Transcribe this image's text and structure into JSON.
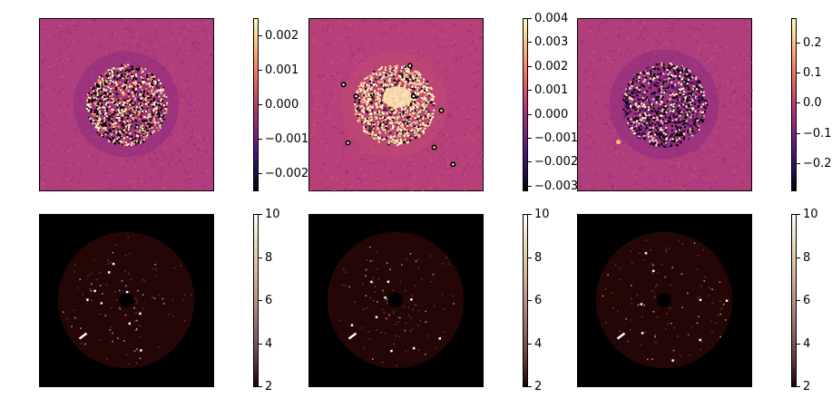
{
  "chart_data": [
    {
      "type": "heatmap",
      "row": "top",
      "col": 1,
      "colormap": "magma",
      "style": "residual",
      "colorbar": {
        "min": -0.0025,
        "max": 0.0025,
        "ticks": [
          0.002,
          0.001,
          0.0,
          -0.001,
          -0.002
        ],
        "tick_labels": [
          "0.002",
          "0.001",
          "0.000",
          "−0.001",
          "−0.002"
        ]
      }
    },
    {
      "type": "heatmap",
      "row": "top",
      "col": 2,
      "colormap": "magma",
      "style": "residual-bright",
      "colorbar": {
        "min": -0.0032,
        "max": 0.004,
        "ticks": [
          0.004,
          0.003,
          0.002,
          0.001,
          0.0,
          -0.001,
          -0.002,
          -0.003
        ],
        "tick_labels": [
          "0.004",
          "0.003",
          "0.002",
          "0.001",
          "0.000",
          "−0.001",
          "−0.002",
          "−0.003"
        ]
      }
    },
    {
      "type": "heatmap",
      "row": "top",
      "col": 3,
      "colormap": "magma",
      "style": "residual-dark",
      "colorbar": {
        "min": -0.29,
        "max": 0.28,
        "ticks": [
          0.2,
          0.1,
          0.0,
          -0.1,
          -0.2
        ],
        "tick_labels": [
          "0.2",
          "0.1",
          "0.0",
          "−0.1",
          "−0.2"
        ]
      }
    },
    {
      "type": "heatmap",
      "row": "bottom",
      "col": 1,
      "colormap": "pink",
      "style": "snr-map",
      "colorbar": {
        "min": 2,
        "max": 10,
        "ticks": [
          10,
          8,
          6,
          4,
          2
        ],
        "tick_labels": [
          "10",
          "8",
          "6",
          "4",
          "2"
        ]
      }
    },
    {
      "type": "heatmap",
      "row": "bottom",
      "col": 2,
      "colormap": "pink",
      "style": "snr-map",
      "colorbar": {
        "min": 2,
        "max": 10,
        "ticks": [
          10,
          8,
          6,
          4,
          2
        ],
        "tick_labels": [
          "10",
          "8",
          "6",
          "4",
          "2"
        ]
      }
    },
    {
      "type": "heatmap",
      "row": "bottom",
      "col": 3,
      "colormap": "pink",
      "style": "snr-map",
      "colorbar": {
        "min": 2,
        "max": 10,
        "ticks": [
          10,
          8,
          6,
          4,
          2
        ],
        "tick_labels": [
          "10",
          "8",
          "6",
          "4",
          "2"
        ]
      }
    }
  ]
}
